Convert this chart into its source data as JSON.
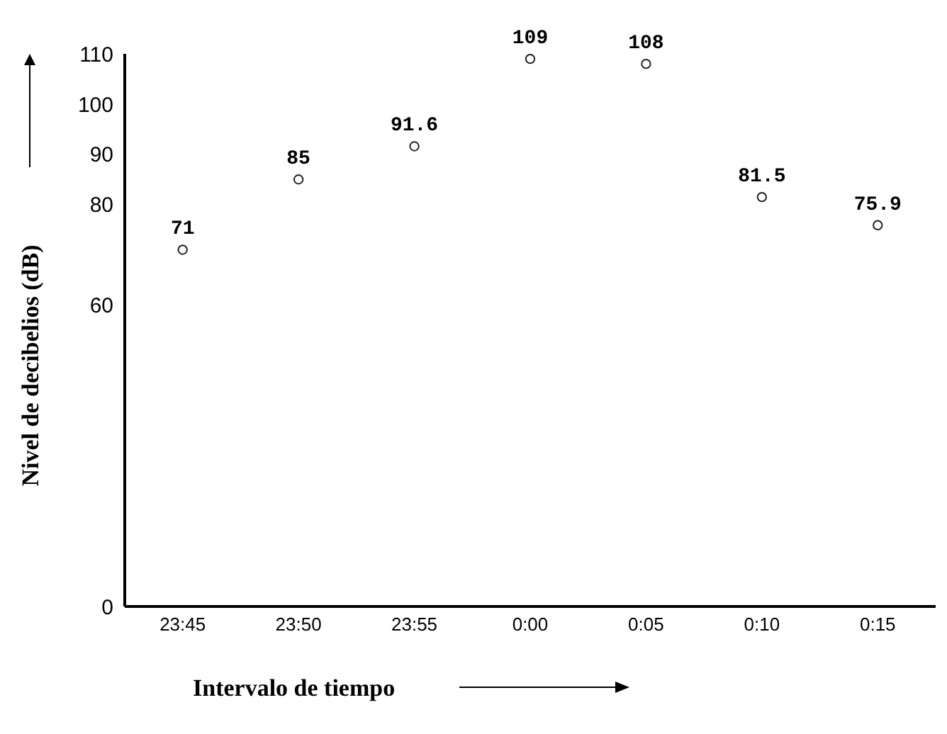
{
  "chart_data": {
    "type": "scatter",
    "xlabel": "Intervalo de tiempo",
    "ylabel": "Nivel de decibelios (dB)",
    "categories": [
      "23:45",
      "23:50",
      "23:55",
      "0:00",
      "0:05",
      "0:10",
      "0:15"
    ],
    "values": [
      71,
      85,
      91.6,
      109,
      108,
      81.5,
      75.9
    ],
    "color": "#222222",
    "marker": "circle",
    "data_labels": true,
    "ylim": [
      0,
      110
    ],
    "yticks": [
      0,
      60,
      80,
      90,
      100,
      110
    ]
  }
}
